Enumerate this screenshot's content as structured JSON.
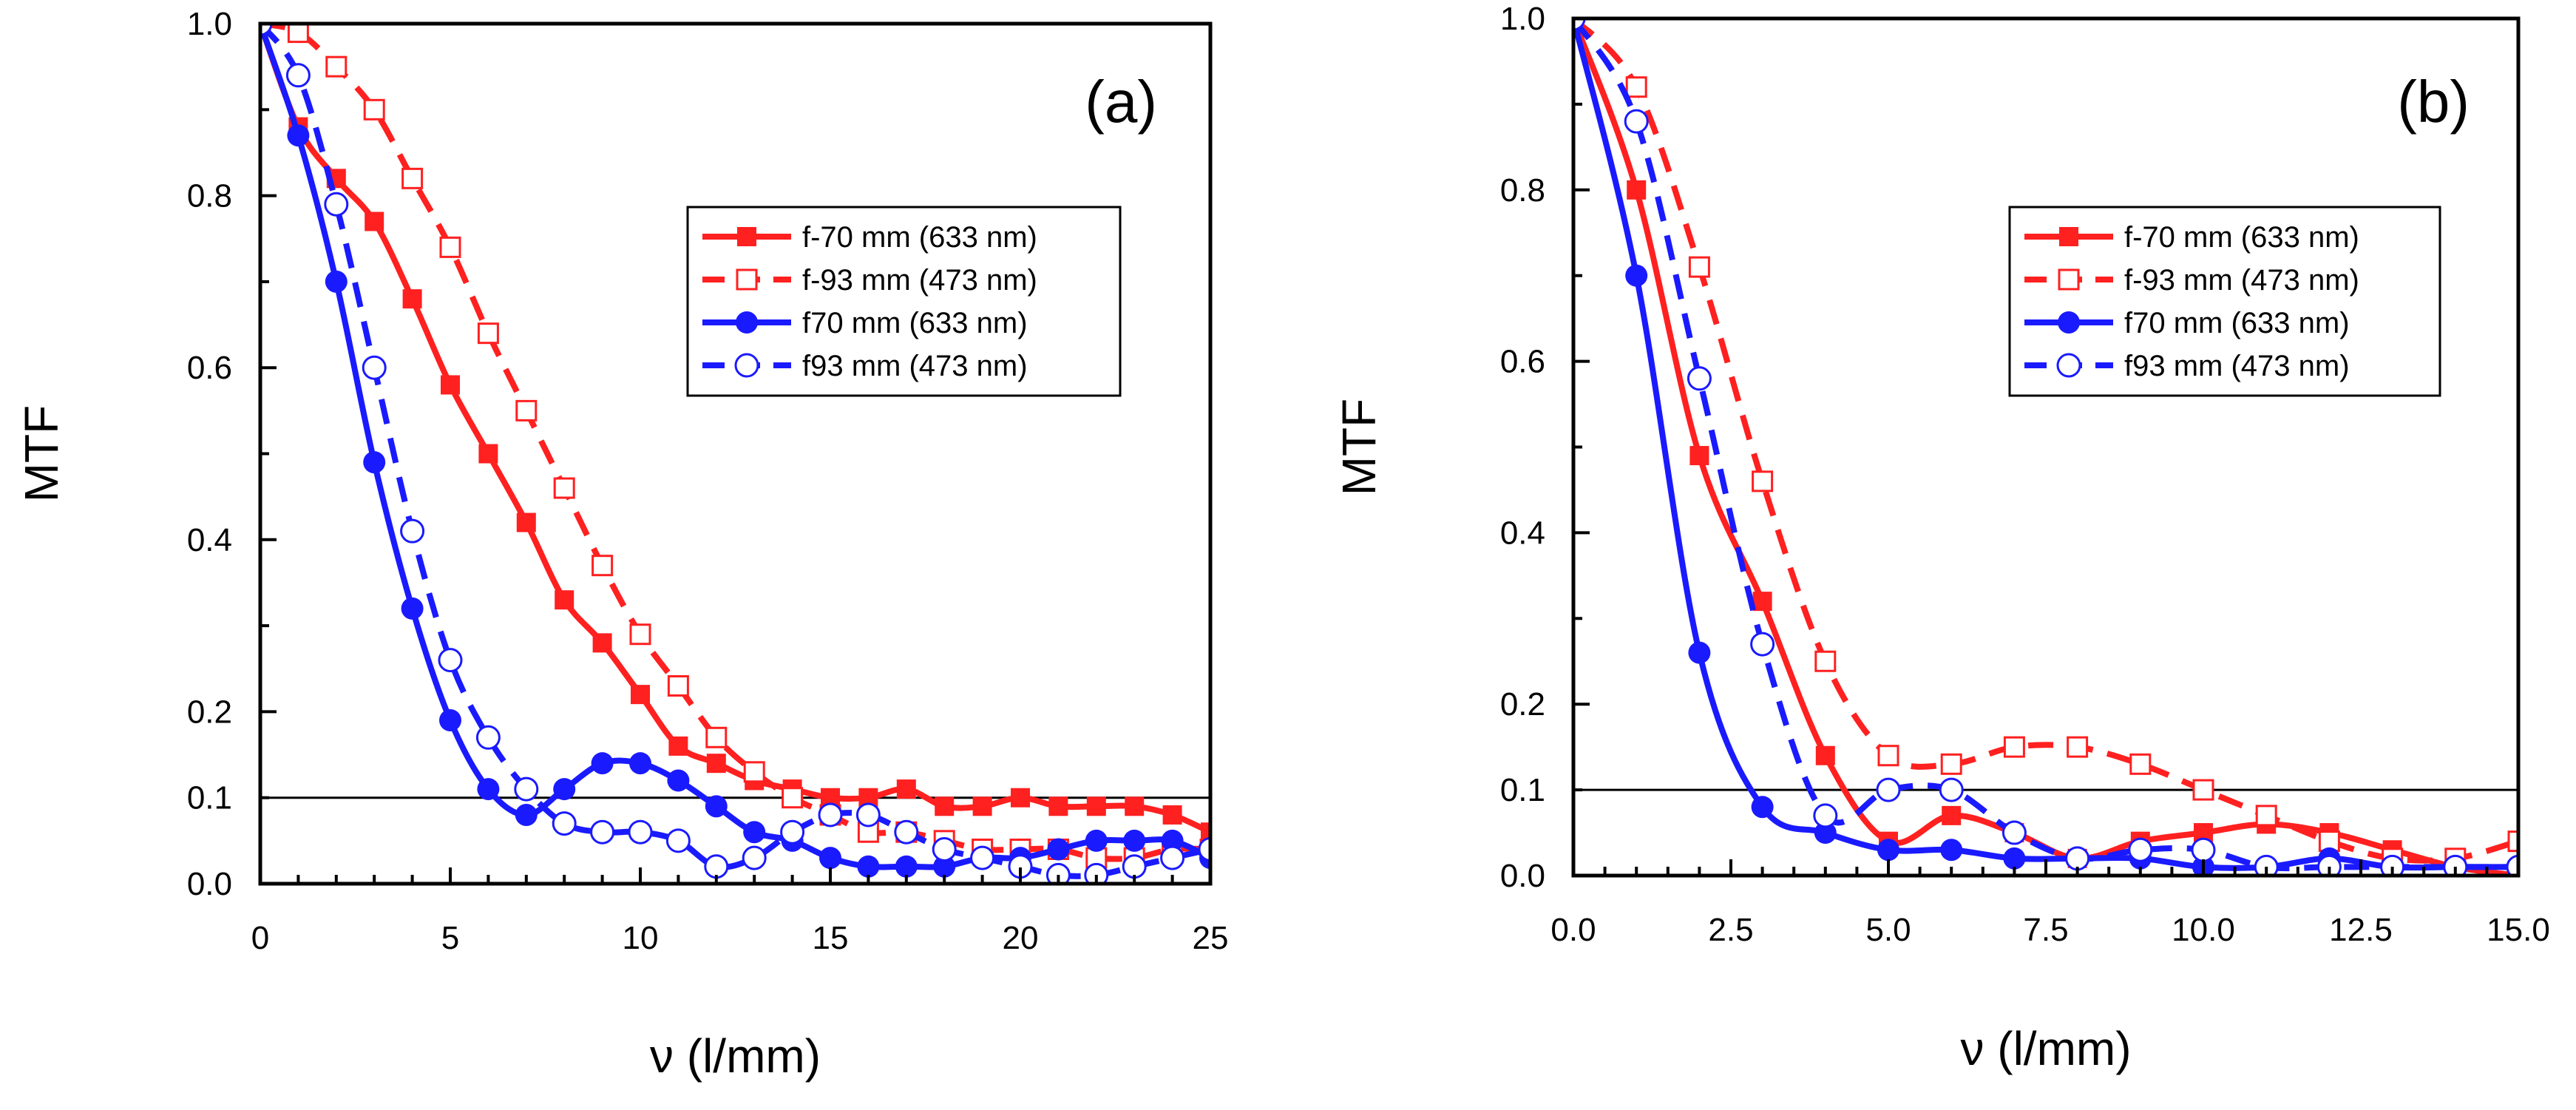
{
  "figure": {
    "colors": {
      "red": "#ff2020",
      "blue": "#1a1aff",
      "axis": "#000000"
    }
  },
  "chart_data": [
    {
      "type": "line",
      "panel_label": "(a)",
      "xlabel": "ν (l/mm)",
      "ylabel": "MTF",
      "xlim": [
        0,
        25
      ],
      "ylim": [
        0,
        1.0
      ],
      "xticks": [
        0,
        5,
        10,
        15,
        20,
        25
      ],
      "xtick_labels": [
        "0",
        "5",
        "10",
        "15",
        "20",
        "25"
      ],
      "yticks": [
        0.0,
        0.1,
        0.2,
        0.4,
        0.6,
        0.8,
        1.0
      ],
      "ytick_labels": [
        "0.0",
        "0.1",
        "0.2",
        "0.4",
        "0.6",
        "0.8",
        "1.0"
      ],
      "reference_line": 0.1,
      "legend_position": "upper-right",
      "series": [
        {
          "name": "f-70 mm (633 nm)",
          "color": "#ff2020",
          "marker": "filled-square",
          "line": "solid",
          "x": [
            0,
            1,
            2,
            3,
            4,
            5,
            6,
            7,
            8,
            9,
            10,
            11,
            12,
            13,
            14,
            15,
            16,
            17,
            18,
            19,
            20,
            21,
            22,
            23,
            24,
            25
          ],
          "y": [
            1.0,
            0.88,
            0.82,
            0.77,
            0.68,
            0.58,
            0.5,
            0.42,
            0.33,
            0.28,
            0.22,
            0.16,
            0.14,
            0.12,
            0.11,
            0.1,
            0.1,
            0.11,
            0.09,
            0.09,
            0.1,
            0.09,
            0.09,
            0.09,
            0.08,
            0.06
          ]
        },
        {
          "name": "f-93 mm (473 nm)",
          "color": "#ff2020",
          "marker": "open-square",
          "line": "dashed",
          "x": [
            0,
            1,
            2,
            3,
            4,
            5,
            6,
            7,
            8,
            9,
            10,
            11,
            12,
            13,
            14,
            15,
            16,
            17,
            18,
            19,
            20,
            21,
            22,
            23,
            24,
            25
          ],
          "y": [
            1.0,
            0.99,
            0.95,
            0.9,
            0.82,
            0.74,
            0.64,
            0.55,
            0.46,
            0.37,
            0.29,
            0.23,
            0.17,
            0.13,
            0.1,
            0.08,
            0.06,
            0.06,
            0.05,
            0.04,
            0.04,
            0.04,
            0.03,
            0.03,
            0.04,
            0.04
          ]
        },
        {
          "name": "f70 mm (633 nm)",
          "color": "#1a1aff",
          "marker": "filled-circle",
          "line": "solid",
          "x": [
            0,
            1,
            2,
            3,
            4,
            5,
            6,
            7,
            8,
            9,
            10,
            11,
            12,
            13,
            14,
            15,
            16,
            17,
            18,
            19,
            20,
            21,
            22,
            23,
            24,
            25
          ],
          "y": [
            1.0,
            0.87,
            0.7,
            0.49,
            0.32,
            0.19,
            0.11,
            0.08,
            0.11,
            0.14,
            0.14,
            0.12,
            0.09,
            0.06,
            0.05,
            0.03,
            0.02,
            0.02,
            0.02,
            0.03,
            0.03,
            0.04,
            0.05,
            0.05,
            0.05,
            0.03
          ]
        },
        {
          "name": "f93 mm (473 nm)",
          "color": "#1a1aff",
          "marker": "open-circle",
          "line": "dashed",
          "x": [
            0,
            1,
            2,
            3,
            4,
            5,
            6,
            7,
            8,
            9,
            10,
            11,
            12,
            13,
            14,
            15,
            16,
            17,
            18,
            19,
            20,
            21,
            22,
            23,
            24,
            25
          ],
          "y": [
            1.0,
            0.94,
            0.79,
            0.6,
            0.41,
            0.26,
            0.17,
            0.11,
            0.07,
            0.06,
            0.06,
            0.05,
            0.02,
            0.03,
            0.06,
            0.08,
            0.08,
            0.06,
            0.04,
            0.03,
            0.02,
            0.01,
            0.01,
            0.02,
            0.03,
            0.04
          ]
        }
      ]
    },
    {
      "type": "line",
      "panel_label": "(b)",
      "xlabel": "ν (l/mm)",
      "ylabel": "MTF",
      "xlim": [
        0,
        15
      ],
      "ylim": [
        0,
        1.0
      ],
      "xticks": [
        0,
        2.5,
        5,
        7.5,
        10,
        12.5,
        15
      ],
      "xtick_labels": [
        "0.0",
        "2.5",
        "5.0",
        "7.5",
        "10.0",
        "12.5",
        "15.0"
      ],
      "yticks": [
        0.0,
        0.1,
        0.2,
        0.4,
        0.6,
        0.8,
        1.0
      ],
      "ytick_labels": [
        "0.0",
        "0.1",
        "0.2",
        "0.4",
        "0.6",
        "0.8",
        "1.0"
      ],
      "reference_line": 0.1,
      "legend_position": "upper-right",
      "series": [
        {
          "name": "f-70 mm (633 nm)",
          "color": "#ff2020",
          "marker": "filled-square",
          "line": "solid",
          "x": [
            0,
            1,
            2,
            3,
            4,
            5,
            6,
            7,
            8,
            9,
            10,
            11,
            12,
            13,
            14,
            15
          ],
          "y": [
            1.0,
            0.8,
            0.49,
            0.32,
            0.14,
            0.04,
            0.07,
            0.05,
            0.02,
            0.04,
            0.05,
            0.06,
            0.05,
            0.03,
            0.01,
            0.0
          ]
        },
        {
          "name": "f-93 mm (473 nm)",
          "color": "#ff2020",
          "marker": "open-square",
          "line": "dashed",
          "x": [
            0,
            1,
            2,
            3,
            4,
            5,
            6,
            7,
            8,
            9,
            10,
            11,
            12,
            13,
            14,
            15
          ],
          "y": [
            1.0,
            0.92,
            0.71,
            0.46,
            0.25,
            0.14,
            0.13,
            0.15,
            0.15,
            0.13,
            0.1,
            0.07,
            0.04,
            0.02,
            0.02,
            0.04
          ]
        },
        {
          "name": "f70 mm (633 nm)",
          "color": "#1a1aff",
          "marker": "filled-circle",
          "line": "solid",
          "x": [
            0,
            1,
            2,
            3,
            4,
            5,
            6,
            7,
            8,
            9,
            10,
            11,
            12,
            13,
            14,
            15
          ],
          "y": [
            1.0,
            0.7,
            0.26,
            0.08,
            0.05,
            0.03,
            0.03,
            0.02,
            0.02,
            0.02,
            0.01,
            0.01,
            0.02,
            0.01,
            0.01,
            0.01
          ]
        },
        {
          "name": "f93 mm (473 nm)",
          "color": "#1a1aff",
          "marker": "open-circle",
          "line": "dashed",
          "x": [
            0,
            1,
            2,
            3,
            4,
            5,
            6,
            7,
            8,
            9,
            10,
            11,
            12,
            13,
            14,
            15
          ],
          "y": [
            1.0,
            0.88,
            0.58,
            0.27,
            0.07,
            0.1,
            0.1,
            0.05,
            0.02,
            0.03,
            0.03,
            0.01,
            0.01,
            0.01,
            0.01,
            0.01
          ]
        }
      ]
    }
  ]
}
